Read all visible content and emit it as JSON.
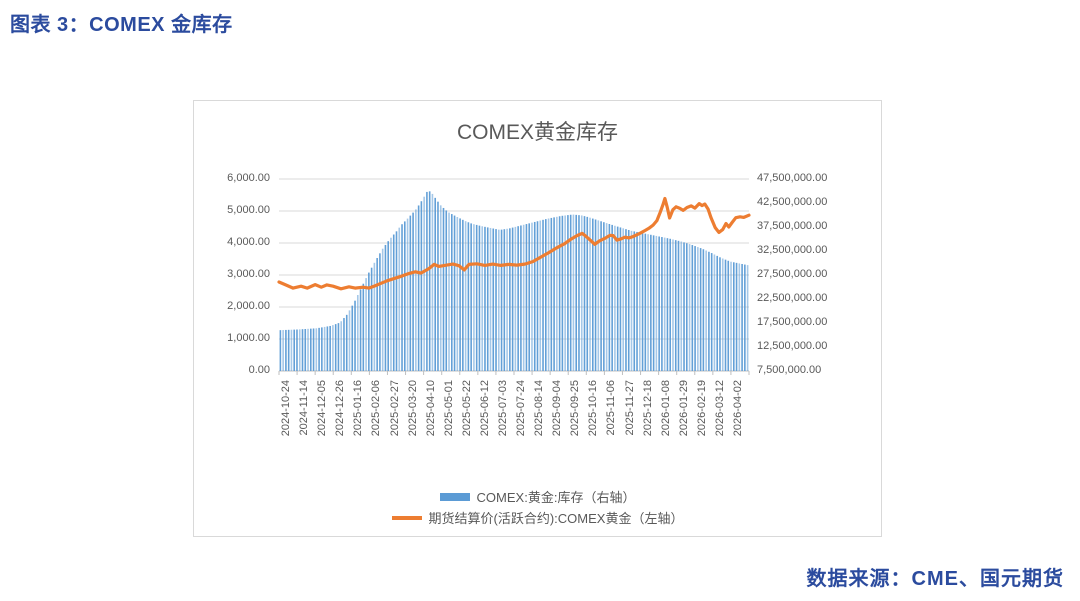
{
  "page": {
    "heading": "图表 3：COMEX 金库存",
    "source": "数据来源：CME、国元期货"
  },
  "colors": {
    "heading_text": "#2B4B9E",
    "chart_text": "#595959",
    "gridline": "#D9D9D9",
    "axis_line": "#BFBFBF",
    "bar": "#5B9BD5",
    "bar_light": "#9DC3E6",
    "line": "#ED7D31"
  },
  "chart_data": {
    "type": "combo",
    "title": "COMEX黄金库存",
    "grid": true,
    "legend_position": "bottom",
    "x_labels": [
      "2024-10-24",
      "2024-11-14",
      "2024-12-05",
      "2024-12-26",
      "2025-01-16",
      "2025-02-06",
      "2025-02-27",
      "2025-03-20",
      "2025-04-10",
      "2025-05-01",
      "2025-05-22",
      "2025-06-12",
      "2025-07-03",
      "2025-07-24",
      "2025-08-14",
      "2025-09-04",
      "2025-09-25",
      "2025-10-16",
      "2025-11-06",
      "2025-11-27",
      "2025-12-18",
      "2026-01-08",
      "2026-01-29",
      "2026-02-19",
      "2026-03-12",
      "2026-04-02"
    ],
    "left_axis": {
      "min": 0,
      "max": 6000,
      "step": 1000,
      "tick_labels": [
        "6,000.00",
        "5,000.00",
        "4,000.00",
        "3,000.00",
        "2,000.00",
        "1,000.00",
        "0.00"
      ]
    },
    "right_axis": {
      "min": 7500000,
      "max": 47500000,
      "step": 5000000,
      "tick_labels": [
        "47,500,000.00",
        "42,500,000.00",
        "37,500,000.00",
        "32,500,000.00",
        "27,500,000.00",
        "22,500,000.00",
        "17,500,000.00",
        "12,500,000.00",
        "7,500,000.00"
      ]
    },
    "series": [
      {
        "name": "COMEX:黄金:库存（右轴）",
        "type": "bar",
        "axis": "right",
        "color": "#5B9BD5",
        "points": [
          [
            0.0,
            16000000
          ],
          [
            0.04,
            16150000
          ],
          [
            0.08,
            16400000
          ],
          [
            0.11,
            16900000
          ],
          [
            0.13,
            17600000
          ],
          [
            0.145,
            19300000
          ],
          [
            0.16,
            21800000
          ],
          [
            0.175,
            24800000
          ],
          [
            0.19,
            27800000
          ],
          [
            0.205,
            30400000
          ],
          [
            0.22,
            32900000
          ],
          [
            0.235,
            34900000
          ],
          [
            0.25,
            36600000
          ],
          [
            0.26,
            37900000
          ],
          [
            0.275,
            39400000
          ],
          [
            0.29,
            41000000
          ],
          [
            0.3,
            42400000
          ],
          [
            0.31,
            44000000
          ],
          [
            0.317,
            45200000
          ],
          [
            0.325,
            44600000
          ],
          [
            0.335,
            43200000
          ],
          [
            0.345,
            41900000
          ],
          [
            0.36,
            40600000
          ],
          [
            0.377,
            39700000
          ],
          [
            0.395,
            38800000
          ],
          [
            0.41,
            38200000
          ],
          [
            0.43,
            37700000
          ],
          [
            0.45,
            37300000
          ],
          [
            0.47,
            36900000
          ],
          [
            0.49,
            37200000
          ],
          [
            0.51,
            37700000
          ],
          [
            0.53,
            38200000
          ],
          [
            0.55,
            38700000
          ],
          [
            0.57,
            39200000
          ],
          [
            0.6,
            39800000
          ],
          [
            0.625,
            40100000
          ],
          [
            0.645,
            39900000
          ],
          [
            0.66,
            39500000
          ],
          [
            0.685,
            38700000
          ],
          [
            0.71,
            37900000
          ],
          [
            0.73,
            37300000
          ],
          [
            0.75,
            36700000
          ],
          [
            0.77,
            36300000
          ],
          [
            0.79,
            35900000
          ],
          [
            0.81,
            35500000
          ],
          [
            0.83,
            35100000
          ],
          [
            0.855,
            34500000
          ],
          [
            0.875,
            33900000
          ],
          [
            0.9,
            33000000
          ],
          [
            0.92,
            32100000
          ],
          [
            0.94,
            31100000
          ],
          [
            0.96,
            30300000
          ],
          [
            0.98,
            29900000
          ],
          [
            1.0,
            29500000
          ]
        ]
      },
      {
        "name": "期货结算价(活跃合约):COMEX黄金（左轴）",
        "type": "line",
        "axis": "left",
        "color": "#ED7D31",
        "points": [
          [
            0.0,
            2780
          ],
          [
            0.013,
            2700
          ],
          [
            0.03,
            2590
          ],
          [
            0.047,
            2650
          ],
          [
            0.06,
            2590
          ],
          [
            0.077,
            2700
          ],
          [
            0.09,
            2620
          ],
          [
            0.102,
            2690
          ],
          [
            0.115,
            2650
          ],
          [
            0.132,
            2570
          ],
          [
            0.149,
            2630
          ],
          [
            0.162,
            2590
          ],
          [
            0.179,
            2620
          ],
          [
            0.191,
            2590
          ],
          [
            0.204,
            2660
          ],
          [
            0.217,
            2740
          ],
          [
            0.23,
            2820
          ],
          [
            0.247,
            2900
          ],
          [
            0.26,
            2960
          ],
          [
            0.277,
            3050
          ],
          [
            0.29,
            3100
          ],
          [
            0.302,
            3060
          ],
          [
            0.319,
            3200
          ],
          [
            0.33,
            3330
          ],
          [
            0.34,
            3270
          ],
          [
            0.357,
            3310
          ],
          [
            0.37,
            3340
          ],
          [
            0.383,
            3290
          ],
          [
            0.394,
            3160
          ],
          [
            0.404,
            3330
          ],
          [
            0.421,
            3350
          ],
          [
            0.438,
            3300
          ],
          [
            0.455,
            3340
          ],
          [
            0.472,
            3300
          ],
          [
            0.489,
            3330
          ],
          [
            0.506,
            3310
          ],
          [
            0.523,
            3340
          ],
          [
            0.54,
            3420
          ],
          [
            0.557,
            3560
          ],
          [
            0.574,
            3700
          ],
          [
            0.591,
            3850
          ],
          [
            0.608,
            3980
          ],
          [
            0.621,
            4120
          ],
          [
            0.634,
            4230
          ],
          [
            0.645,
            4300
          ],
          [
            0.653,
            4210
          ],
          [
            0.663,
            4080
          ],
          [
            0.672,
            3960
          ],
          [
            0.681,
            4060
          ],
          [
            0.694,
            4150
          ],
          [
            0.704,
            4240
          ],
          [
            0.711,
            4230
          ],
          [
            0.719,
            4090
          ],
          [
            0.728,
            4130
          ],
          [
            0.736,
            4180
          ],
          [
            0.745,
            4160
          ],
          [
            0.753,
            4200
          ],
          [
            0.762,
            4260
          ],
          [
            0.77,
            4320
          ],
          [
            0.779,
            4390
          ],
          [
            0.787,
            4460
          ],
          [
            0.796,
            4560
          ],
          [
            0.804,
            4700
          ],
          [
            0.811,
            4960
          ],
          [
            0.817,
            5200
          ],
          [
            0.821,
            5390
          ],
          [
            0.826,
            5120
          ],
          [
            0.831,
            4780
          ],
          [
            0.838,
            5040
          ],
          [
            0.845,
            5130
          ],
          [
            0.853,
            5080
          ],
          [
            0.86,
            5020
          ],
          [
            0.868,
            5110
          ],
          [
            0.877,
            5160
          ],
          [
            0.885,
            5090
          ],
          [
            0.894,
            5230
          ],
          [
            0.9,
            5170
          ],
          [
            0.906,
            5220
          ],
          [
            0.913,
            5060
          ],
          [
            0.919,
            4800
          ],
          [
            0.928,
            4480
          ],
          [
            0.936,
            4330
          ],
          [
            0.944,
            4420
          ],
          [
            0.951,
            4610
          ],
          [
            0.957,
            4500
          ],
          [
            0.964,
            4640
          ],
          [
            0.972,
            4790
          ],
          [
            0.981,
            4820
          ],
          [
            0.989,
            4800
          ],
          [
            1.0,
            4870
          ]
        ]
      }
    ]
  }
}
